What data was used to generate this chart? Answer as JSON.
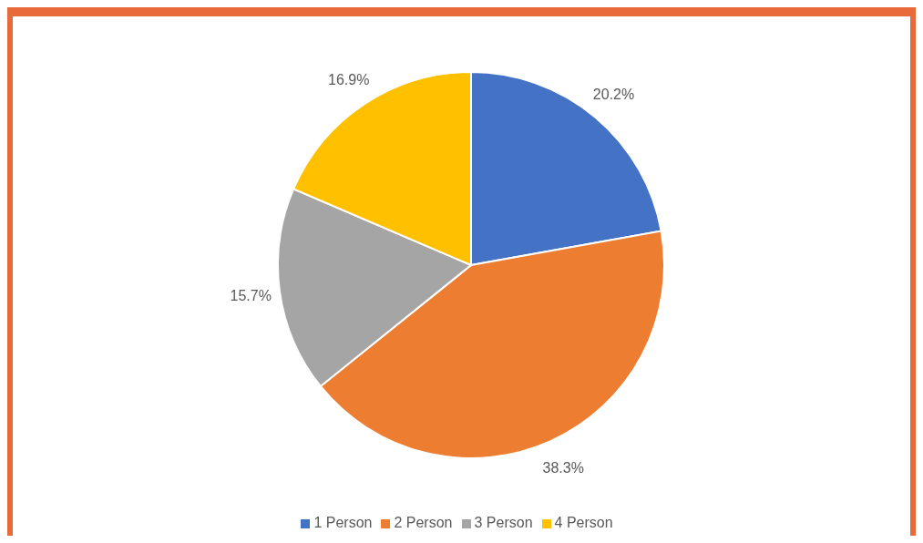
{
  "chart_data": {
    "type": "pie",
    "categories": [
      "1 Person",
      "2 Person",
      "3 Person",
      "4 Person"
    ],
    "values": [
      20.2,
      38.3,
      15.7,
      16.9
    ],
    "value_labels": [
      "20.2%",
      "38.3%",
      "15.7%",
      "16.9%"
    ],
    "colors": [
      "#4472c4",
      "#ed7d31",
      "#a5a5a5",
      "#ffc000"
    ],
    "legend": "bottom"
  }
}
